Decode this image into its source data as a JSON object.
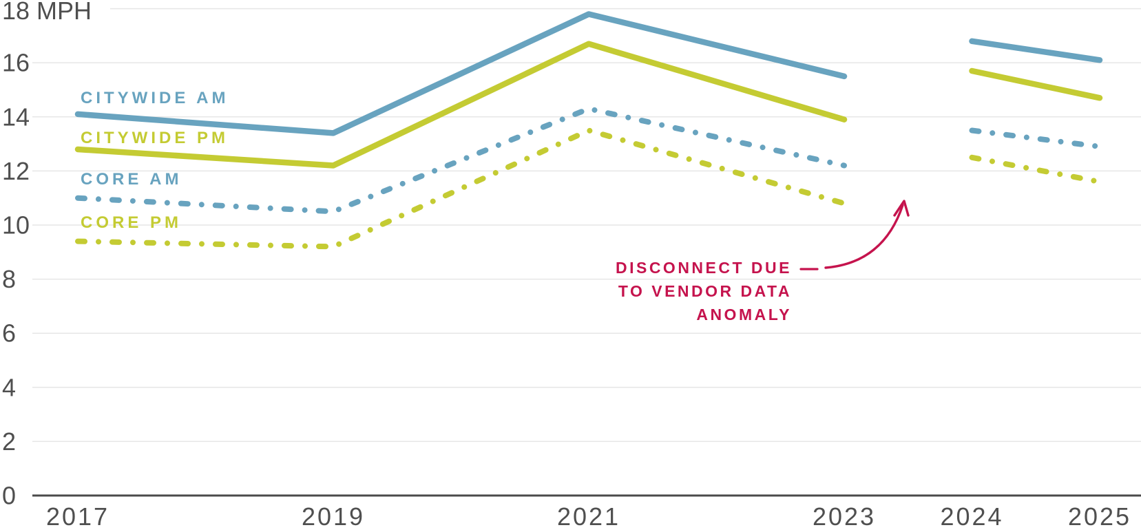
{
  "chart_data": {
    "type": "line",
    "title": "",
    "xlabel": "",
    "ylabel": "MPH",
    "ylim": [
      0,
      18
    ],
    "grid": true,
    "legend_position": "inline-left",
    "x": [
      2017,
      2019,
      2021,
      2023,
      2024,
      2025
    ],
    "x_tick_labels": [
      "2017",
      "2019",
      "2021",
      "2023",
      "2024",
      "2025"
    ],
    "y_ticks": [
      {
        "value": 0,
        "label": "0"
      },
      {
        "value": 2,
        "label": "2"
      },
      {
        "value": 4,
        "label": "4"
      },
      {
        "value": 6,
        "label": "6"
      },
      {
        "value": 8,
        "label": "8"
      },
      {
        "value": 10,
        "label": "10"
      },
      {
        "value": 12,
        "label": "12"
      },
      {
        "value": 14,
        "label": "14"
      },
      {
        "value": 16,
        "label": "16"
      },
      {
        "value": 18,
        "label": "18 MPH"
      }
    ],
    "gap_after_year": 2023,
    "series": [
      {
        "name": "CITYWIDE AM",
        "style": "solid",
        "color": "#68a3bf",
        "values": [
          14.1,
          13.4,
          17.8,
          15.5,
          16.8,
          16.1
        ]
      },
      {
        "name": "CITYWIDE PM",
        "style": "solid",
        "color": "#c4cb33",
        "values": [
          12.8,
          12.2,
          16.7,
          13.9,
          15.7,
          14.7
        ]
      },
      {
        "name": "CORE AM",
        "style": "dashdot",
        "color": "#68a3bf",
        "values": [
          11.0,
          10.5,
          14.3,
          12.2,
          13.5,
          12.9
        ]
      },
      {
        "name": "CORE PM",
        "style": "dashdot",
        "color": "#c4cb33",
        "values": [
          9.4,
          9.2,
          13.5,
          10.8,
          12.5,
          11.6
        ]
      }
    ],
    "annotation": {
      "lines": [
        "DISCONNECT DUE",
        "TO VENDOR DATA",
        "ANOMALY"
      ],
      "color": "#c5134d"
    },
    "colors": {
      "background": "#ffffff",
      "grid_line": "#e6e6e6",
      "axis_line": "#4a4a4a",
      "tick_text": "#4f4f4f"
    }
  }
}
